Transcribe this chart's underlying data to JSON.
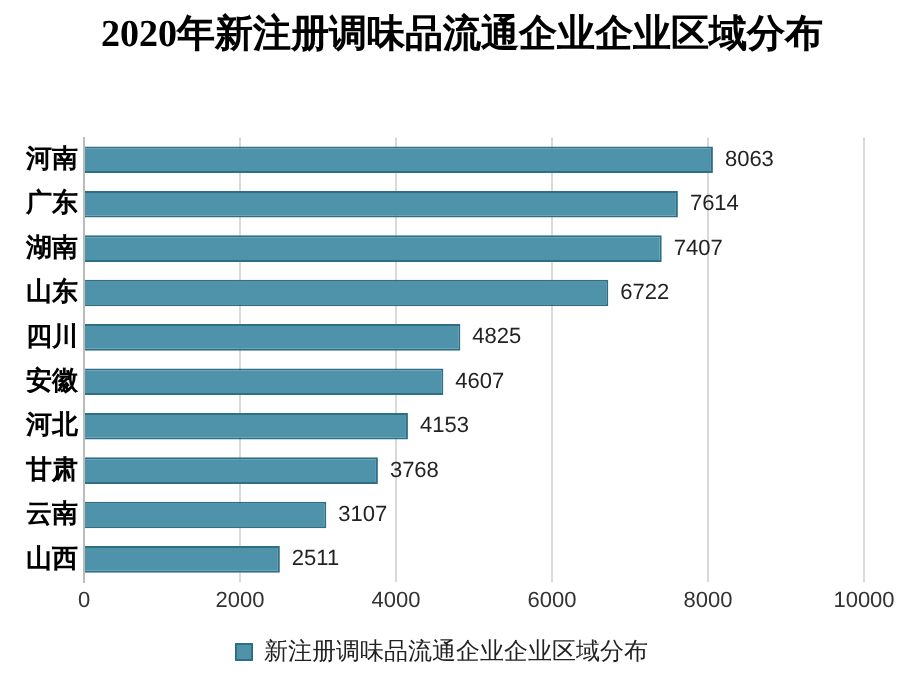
{
  "chart_data": {
    "type": "bar",
    "orientation": "horizontal",
    "title": "2020年新注册调味品流通企业企业区域分布",
    "categories": [
      "河南",
      "广东",
      "湖南",
      "山东",
      "四川",
      "安徽",
      "河北",
      "甘肃",
      "云南",
      "山西"
    ],
    "series": [
      {
        "name": "新注册调味品流通企业企业区域分布",
        "color": "#4f93ab",
        "values": [
          8063,
          7614,
          7407,
          6722,
          4825,
          4607,
          4153,
          3768,
          3107,
          2511
        ]
      }
    ],
    "xlim": [
      0,
      10000
    ],
    "xticks": [
      0,
      2000,
      4000,
      6000,
      8000,
      10000
    ],
    "grid": "x",
    "legend": "bottom",
    "data_labels": true
  }
}
